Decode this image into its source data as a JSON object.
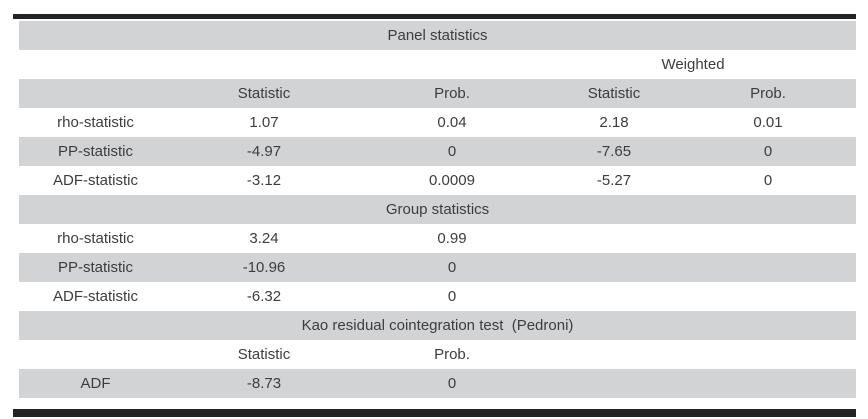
{
  "colors": {
    "band_gray": "#d2d3d5",
    "rule_black": "#232323",
    "text_color": "#3d3d3d",
    "page_bg": "#ffffff"
  },
  "panel": {
    "title": "Panel statistics",
    "weighted_label": "Weighted",
    "col_headers": {
      "statistic": "Statistic",
      "prob": "Prob.",
      "w_statistic": "Statistic",
      "w_prob": "Prob."
    },
    "rows": [
      {
        "label": "rho-statistic",
        "statistic": "1.07",
        "prob": "0.04",
        "w_statistic": "2.18",
        "w_prob": "0.01"
      },
      {
        "label": "PP-statistic",
        "statistic": "-4.97",
        "prob": "0",
        "w_statistic": "-7.65",
        "w_prob": "0"
      },
      {
        "label": "ADF-statistic",
        "statistic": "-3.12",
        "prob": "0.0009",
        "w_statistic": "-5.27",
        "w_prob": "0"
      }
    ]
  },
  "group": {
    "title": "Group statistics",
    "rows": [
      {
        "label": "rho-statistic",
        "statistic": "3.24",
        "prob": "0.99"
      },
      {
        "label": "PP-statistic",
        "statistic": "-10.96",
        "prob": "0"
      },
      {
        "label": "ADF-statistic",
        "statistic": "-6.32",
        "prob": "0"
      }
    ]
  },
  "kao": {
    "title": "Kao residual cointegration test  (Pedroni)",
    "col_headers": {
      "statistic": "Statistic",
      "prob": "Prob."
    },
    "rows": [
      {
        "label": "ADF",
        "statistic": "-8.73",
        "prob": "0"
      }
    ]
  }
}
